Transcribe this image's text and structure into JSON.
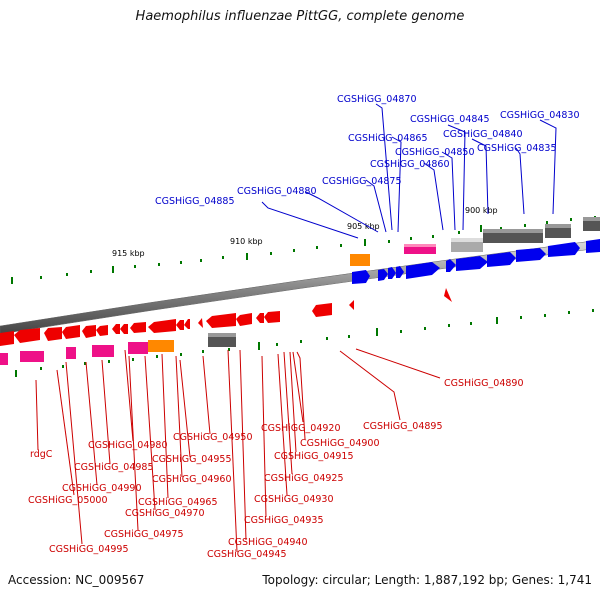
{
  "title": "Haemophilus influenzae PittGG, complete genome",
  "accession": "Accession: NC_009567",
  "summary": "Topology: circular; Length: 1,887,192 bp; Genes: 1,741",
  "colors": {
    "forward_label": "#0000cc",
    "reverse_label": "#cc0000",
    "forward_gene": "#0000ee",
    "reverse_gene": "#ee0000",
    "pink": "#ee1188",
    "orange": "#ff8800",
    "dark_gray": "#555555",
    "light_gray": "#aaaaaa",
    "tick": "#007700"
  },
  "scale_labels": [
    "915 kbp",
    "910 kbp",
    "905 kbp",
    "900 kbp"
  ],
  "forward_labels": [
    "CGSHiGG_04870",
    "CGSHiGG_04830",
    "CGSHiGG_04845",
    "CGSHiGG_04840",
    "CGSHiGG_04865",
    "CGSHiGG_04850",
    "CGSHiGG_04835",
    "CGSHiGG_04860",
    "CGSHiGG_04875",
    "CGSHiGG_04880",
    "CGSHiGG_04885"
  ],
  "reverse_labels": [
    "CGSHiGG_04890",
    "CGSHiGG_04895",
    "CGSHiGG_04920",
    "CGSHiGG_04950",
    "CGSHiGG_04900",
    "CGSHiGG_04980",
    "rdgC",
    "CGSHiGG_04915",
    "CGSHiGG_04955",
    "CGSHiGG_04985",
    "CGSHiGG_04925",
    "CGSHiGG_04960",
    "CGSHiGG_04990",
    "CGSHiGG_04930",
    "CGSHiGG_05000",
    "CGSHiGG_04965",
    "CGSHiGG_04970",
    "CGSHiGG_04935",
    "CGSHiGG_04975",
    "CGSHiGG_04940",
    "CGSHiGG_04995",
    "CGSHiGG_04945"
  ]
}
